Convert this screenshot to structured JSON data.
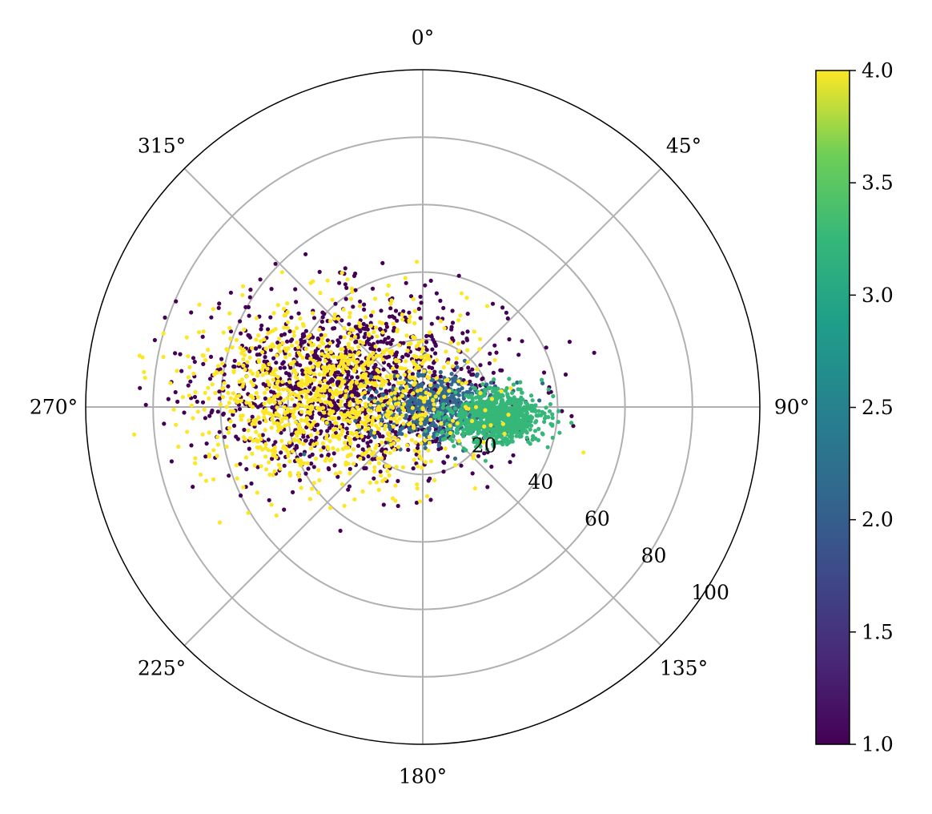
{
  "chart_data": {
    "type": "scatter",
    "projection": "polar",
    "theta_zero_location": "N",
    "theta_direction": "clockwise",
    "theta_ticks": [
      "0°",
      "45°",
      "90°",
      "135°",
      "180°",
      "225°",
      "270°",
      "315°"
    ],
    "theta_tick_values_deg": [
      0,
      45,
      90,
      135,
      180,
      225,
      270,
      315
    ],
    "r_ticks": [
      "20",
      "40",
      "60",
      "80",
      "100"
    ],
    "r_tick_values": [
      20,
      40,
      60,
      80,
      100
    ],
    "rlim": [
      0,
      100
    ],
    "grid": true,
    "colorbar": {
      "colormap": "viridis",
      "range": [
        1.0,
        4.0
      ],
      "ticks": [
        "1.0",
        "1.5",
        "2.0",
        "2.5",
        "3.0",
        "3.5",
        "4.0"
      ],
      "tick_values": [
        1.0,
        1.5,
        2.0,
        2.5,
        3.0,
        3.5,
        4.0
      ],
      "location": "right"
    },
    "series": [
      {
        "value": 1.0,
        "color": "#440154",
        "center_x": -20,
        "center_y": 6,
        "spread_x": 22,
        "spread_y": 13,
        "count": 1300
      },
      {
        "value": 2.0,
        "color": "#31688e",
        "center_x": 4,
        "center_y": 0,
        "spread_x": 10,
        "spread_y": 5,
        "count": 500
      },
      {
        "value": 3.0,
        "color": "#35b779",
        "center_x": 22,
        "center_y": -3,
        "spread_x": 7,
        "spread_y": 4,
        "count": 800
      },
      {
        "value": 4.0,
        "color": "#fde725",
        "center_x": -27,
        "center_y": 4,
        "spread_x": 20,
        "spread_y": 13,
        "count": 1100
      }
    ]
  }
}
